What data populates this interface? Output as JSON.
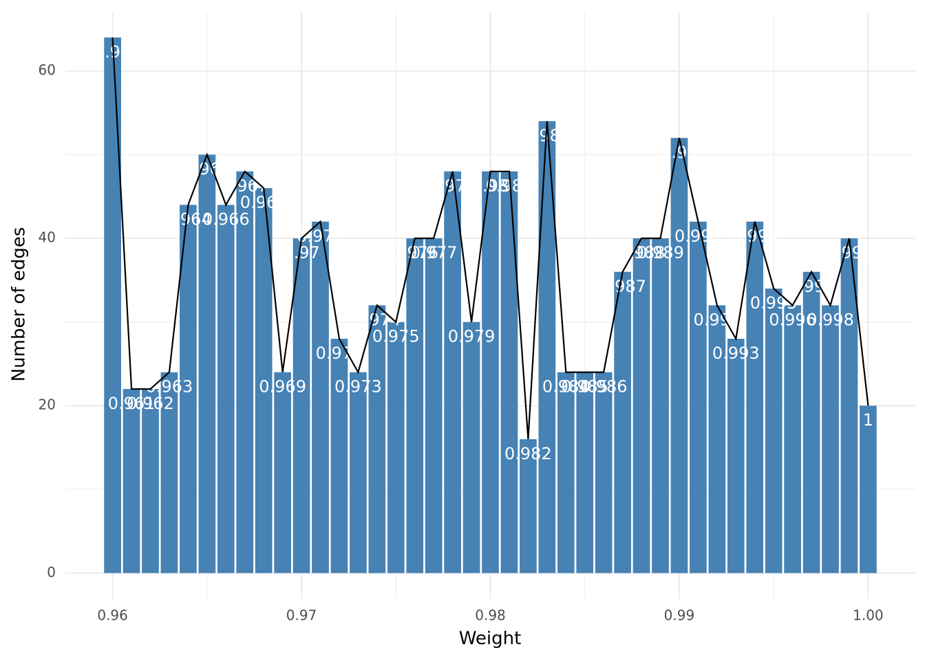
{
  "chart_data": {
    "type": "bar",
    "x_label": "Weight",
    "y_label": "Number of edges",
    "x": [
      0.96,
      0.961,
      0.962,
      0.963,
      0.964,
      0.965,
      0.966,
      0.967,
      0.968,
      0.969,
      0.97,
      0.971,
      0.972,
      0.973,
      0.974,
      0.975,
      0.976,
      0.977,
      0.978,
      0.979,
      0.98,
      0.981,
      0.982,
      0.983,
      0.984,
      0.985,
      0.986,
      0.987,
      0.988,
      0.989,
      0.99,
      0.991,
      0.992,
      0.993,
      0.994,
      0.995,
      0.996,
      0.997,
      0.998,
      0.999,
      1
    ],
    "values": [
      64,
      22,
      22,
      24,
      44,
      50,
      44,
      48,
      46,
      24,
      40,
      42,
      28,
      24,
      32,
      30,
      40,
      40,
      48,
      30,
      48,
      48,
      16,
      54,
      24,
      24,
      24,
      36,
      40,
      40,
      52,
      42,
      32,
      28,
      42,
      34,
      32,
      36,
      32,
      40,
      20
    ],
    "color": "#4682b4",
    "line_color": "#000000",
    "overlay_line": true,
    "bar_labels": true,
    "xlim": [
      0.9575,
      1.0025
    ],
    "ylim": [
      -3.1,
      67
    ],
    "xticks": [
      0.96,
      0.97,
      0.98,
      0.99,
      {
        "value": 1,
        "label": "1.00"
      }
    ],
    "yticks": [
      0,
      20,
      40,
      60
    ],
    "grid": true,
    "minor_grid": true
  }
}
